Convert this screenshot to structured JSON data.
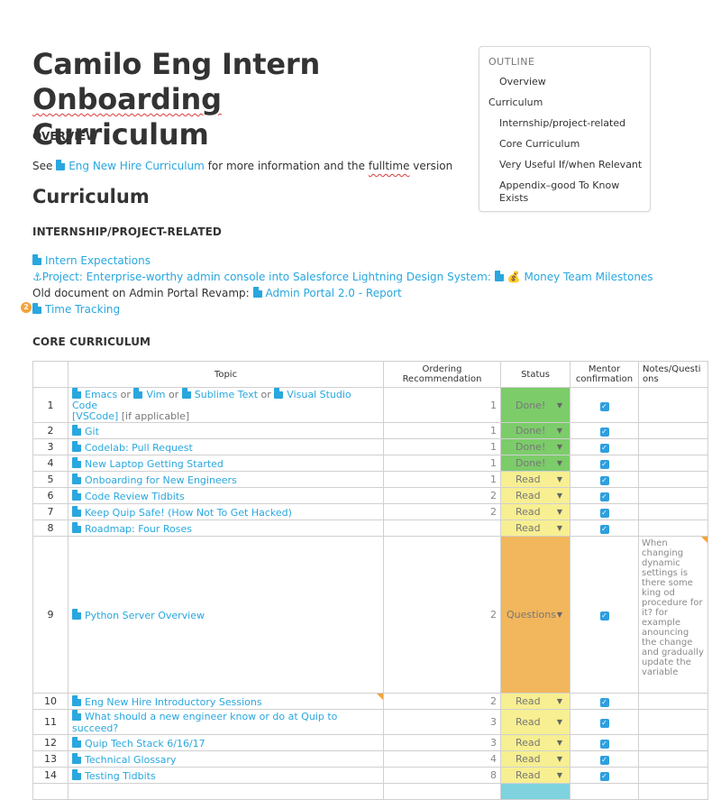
{
  "doc": {
    "title_prefix": "Camilo Eng Intern ",
    "title_squiggle": "Onboarding",
    "title_line2": "Curriculum",
    "overview_heading": "OVERVIEW",
    "overview_see": "See ",
    "overview_link": "Eng New Hire Curriculum",
    "overview_mid": " for more information and the ",
    "overview_squiggle": "fulltime",
    "overview_end": " version",
    "section_title": "Curriculum",
    "internship_heading": "INTERNSHIP/PROJECT-RELATED",
    "link_intern_expectations": "Intern Expectations",
    "project_text": "Project: Enterprise-worthy admin console into Salesforce Lightning Design System:",
    "link_money_team": "Money Team Milestones",
    "old_doc_text": "Old document on Admin Portal Revamp:",
    "link_admin_portal": "Admin Portal 2.0 - Report",
    "link_time_tracking": "Time Tracking",
    "badge_count": "2",
    "core_heading": "CORE CURRICULUM"
  },
  "outline": {
    "heading": "OUTLINE",
    "items": [
      {
        "label": "Overview"
      },
      {
        "label": "Curriculum"
      },
      {
        "label": "Internship/project-related"
      },
      {
        "label": "Core Curriculum"
      },
      {
        "label": "Very Useful If/when Relevant"
      },
      {
        "label": "Appendix–good To Know"
      },
      {
        "label": "Exists"
      }
    ]
  },
  "table": {
    "headers": {
      "num": "",
      "topic": "Topic",
      "order": "Ordering Recommendation",
      "status": "Status",
      "mentor": "Mentor confirmation",
      "notes": "Notes/Questions"
    },
    "row1": {
      "num": "1",
      "a": "Emacs",
      "or1": " or ",
      "b": "Vim",
      "or2": " or ",
      "c": "Sublime Text",
      "or3": " or ",
      "d": "Visual Studio Code",
      "e": "[VSCode]",
      "f": " [if applicable]",
      "order": "1",
      "status": "Done!"
    },
    "rows": [
      {
        "num": "2",
        "topic": "Git",
        "order": "1",
        "status": "Done!"
      },
      {
        "num": "3",
        "topic": "Codelab: Pull Request",
        "order": "1",
        "status": "Done!"
      },
      {
        "num": "4",
        "topic": "New Laptop Getting Started",
        "order": "1",
        "status": "Done!"
      },
      {
        "num": "5",
        "topic": "Onboarding for New Engineers",
        "order": "1",
        "status": "Read"
      },
      {
        "num": "6",
        "topic": "Code Review Tidbits",
        "order": "2",
        "status": "Read"
      },
      {
        "num": "7",
        "topic": "Keep Quip Safe! (How Not To Get Hacked)",
        "order": "2",
        "status": "Read"
      },
      {
        "num": "8",
        "topic": "Roadmap: Four Roses",
        "order": "",
        "status": "Read"
      },
      {
        "num": "9",
        "topic": "Python Server Overview",
        "order": "2",
        "status": "Questions",
        "notes": "When changing dynamic settings is there some king od procedure for it? for example anouncing the change and gradually update the variable"
      },
      {
        "num": "10",
        "topic": "Eng New Hire Introductory Sessions",
        "order": "2",
        "status": "Read"
      },
      {
        "num": "11",
        "topic": "What should a new engineer know or do at Quip to succeed?",
        "order": "3",
        "status": "Read"
      },
      {
        "num": "12",
        "topic": "Quip Tech Stack 6/16/17",
        "order": "3",
        "status": "Read"
      },
      {
        "num": "13",
        "topic": "Technical Glossary",
        "order": "4",
        "status": "Read"
      },
      {
        "num": "14",
        "topic": "Testing Tidbits",
        "order": "8",
        "status": "Read"
      }
    ]
  },
  "colors": {
    "link": "#29a7de",
    "done": "#7ccc6a",
    "read": "#f7ef91",
    "questions": "#f2b65c",
    "next": "#7ed3df"
  }
}
